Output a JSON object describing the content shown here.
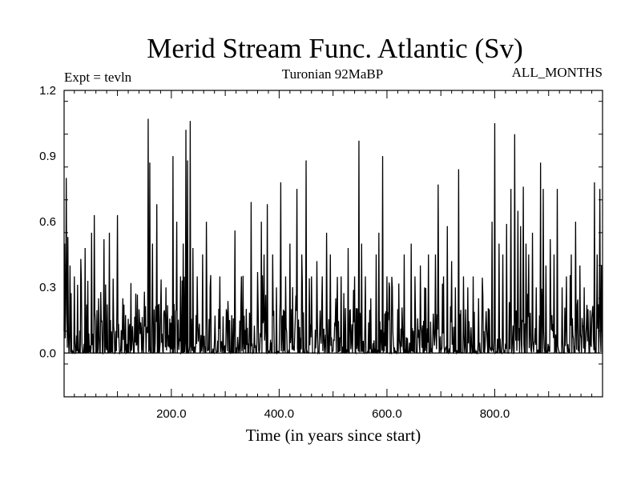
{
  "chart_data": {
    "type": "line",
    "title": "Merid Stream Func. Atlantic (Sv)",
    "subtitle": "Turonian  92MaBP",
    "annotation_left": "Expt = tevln",
    "annotation_right": "ALL_MONTHS",
    "xlabel": "Time (in years since start)",
    "ylabel": "",
    "xlim": [
      1,
      1000
    ],
    "ylim": [
      -0.2,
      1.2
    ],
    "xticks": [
      200,
      400,
      600,
      800
    ],
    "xtick_labels": [
      "200.0",
      "400.0",
      "600.0",
      "800.0"
    ],
    "yticks": [
      0.0,
      0.3,
      0.6,
      0.9,
      1.2
    ],
    "ytick_labels": [
      "0.0",
      "0.3",
      "0.6",
      "0.9",
      "1.2"
    ],
    "grid": false,
    "series_color": "#000000",
    "baseline": 0.0,
    "peaks": [
      [
        2,
        0.5
      ],
      [
        5,
        0.8
      ],
      [
        8,
        0.53
      ],
      [
        12,
        0.4
      ],
      [
        20,
        0.35
      ],
      [
        32,
        0.43
      ],
      [
        40,
        0.48
      ],
      [
        45,
        0.33
      ],
      [
        52,
        0.55
      ],
      [
        57,
        0.63
      ],
      [
        65,
        0.25
      ],
      [
        75,
        0.52
      ],
      [
        85,
        0.55
      ],
      [
        92,
        0.34
      ],
      [
        100,
        0.63
      ],
      [
        110,
        0.25
      ],
      [
        125,
        0.32
      ],
      [
        140,
        0.2
      ],
      [
        150,
        0.28
      ],
      [
        157,
        1.07
      ],
      [
        160,
        0.87
      ],
      [
        165,
        0.5
      ],
      [
        173,
        0.68
      ],
      [
        190,
        0.3
      ],
      [
        203,
        0.9
      ],
      [
        210,
        0.6
      ],
      [
        217,
        0.35
      ],
      [
        222,
        0.5
      ],
      [
        227,
        1.02
      ],
      [
        230,
        0.88
      ],
      [
        235,
        1.06
      ],
      [
        240,
        0.48
      ],
      [
        248,
        0.35
      ],
      [
        258,
        0.45
      ],
      [
        265,
        0.6
      ],
      [
        272,
        0.3
      ],
      [
        290,
        0.35
      ],
      [
        302,
        0.2
      ],
      [
        318,
        0.56
      ],
      [
        330,
        0.35
      ],
      [
        348,
        0.69
      ],
      [
        360,
        0.37
      ],
      [
        367,
        0.6
      ],
      [
        372,
        0.45
      ],
      [
        378,
        0.68
      ],
      [
        388,
        0.45
      ],
      [
        395,
        0.3
      ],
      [
        403,
        0.78
      ],
      [
        412,
        0.35
      ],
      [
        420,
        0.5
      ],
      [
        433,
        0.75
      ],
      [
        442,
        0.45
      ],
      [
        450,
        0.88
      ],
      [
        460,
        0.35
      ],
      [
        470,
        0.42
      ],
      [
        480,
        0.35
      ],
      [
        488,
        0.55
      ],
      [
        495,
        0.45
      ],
      [
        505,
        0.25
      ],
      [
        515,
        0.35
      ],
      [
        528,
        0.48
      ],
      [
        540,
        0.35
      ],
      [
        548,
        0.97
      ],
      [
        553,
        0.5
      ],
      [
        560,
        0.35
      ],
      [
        570,
        0.25
      ],
      [
        580,
        0.45
      ],
      [
        585,
        0.55
      ],
      [
        592,
        0.9
      ],
      [
        600,
        0.35
      ],
      [
        610,
        0.3
      ],
      [
        620,
        0.2
      ],
      [
        632,
        0.45
      ],
      [
        645,
        0.5
      ],
      [
        652,
        0.35
      ],
      [
        662,
        0.4
      ],
      [
        670,
        0.3
      ],
      [
        677,
        0.45
      ],
      [
        690,
        0.45
      ],
      [
        695,
        0.77
      ],
      [
        705,
        0.35
      ],
      [
        712,
        0.58
      ],
      [
        720,
        0.42
      ],
      [
        727,
        0.3
      ],
      [
        733,
        0.84
      ],
      [
        742,
        0.35
      ],
      [
        750,
        0.3
      ],
      [
        760,
        0.35
      ],
      [
        770,
        0.25
      ],
      [
        780,
        0.1
      ],
      [
        790,
        0.2
      ],
      [
        795,
        0.6
      ],
      [
        800,
        1.05
      ],
      [
        808,
        0.5
      ],
      [
        815,
        0.45
      ],
      [
        822,
        0.59
      ],
      [
        830,
        0.75
      ],
      [
        837,
        1.0
      ],
      [
        843,
        0.65
      ],
      [
        848,
        0.58
      ],
      [
        853,
        0.76
      ],
      [
        858,
        0.5
      ],
      [
        863,
        0.45
      ],
      [
        870,
        0.55
      ],
      [
        877,
        0.3
      ],
      [
        885,
        0.87
      ],
      [
        890,
        0.75
      ],
      [
        895,
        0.4
      ],
      [
        903,
        0.52
      ],
      [
        910,
        0.45
      ],
      [
        916,
        0.75
      ],
      [
        925,
        0.3
      ],
      [
        933,
        0.35
      ],
      [
        942,
        0.45
      ],
      [
        950,
        0.6
      ],
      [
        958,
        0.4
      ],
      [
        966,
        0.3
      ],
      [
        973,
        0.2
      ],
      [
        985,
        0.78
      ],
      [
        990,
        0.45
      ],
      [
        995,
        0.75
      ],
      [
        998,
        0.4
      ]
    ]
  }
}
